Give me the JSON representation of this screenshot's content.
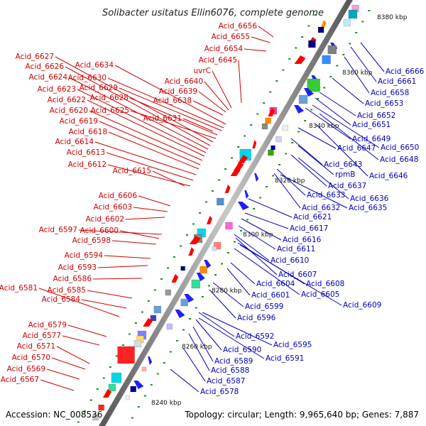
{
  "title": "Solibacter usitatus Ellin6076, complete genome",
  "footer": {
    "accession": "Accession: NC_008536",
    "summary": "Topology: circular; Length: 9,965,640 bp; Genes: 7,887"
  },
  "scale_labels": [
    "8380 kbp",
    "8360 kbp",
    "8340 kbp",
    "8320 kbp",
    "8300 kbp",
    "8280 kbp",
    "8260 kbp",
    "8240 kbp"
  ],
  "forward_genes": [
    "Acid_6656",
    "Acid_6655",
    "Acid_6654",
    "Acid_6645",
    "uvrC",
    "Acid_6640",
    "Acid_6639",
    "Acid_6638",
    "Acid_6631",
    "Acid_6634",
    "Acid_6630",
    "Acid_6629",
    "Acid_6628",
    "Acid_6625",
    "Acid_6627",
    "Acid_6626",
    "Acid_6624",
    "Acid_6623",
    "Acid_6622",
    "Acid_6620",
    "Acid_6619",
    "Acid_6618",
    "Acid_6614",
    "Acid_6613",
    "Acid_6612",
    "Acid_6615",
    "Acid_6606",
    "Acid_6603",
    "Acid_6602",
    "Acid_6597",
    "Acid_6600",
    "Acid_6598",
    "Acid_6594",
    "Acid_6593",
    "Acid_6586",
    "Acid_6581",
    "Acid_6585",
    "Acid_6584",
    "Acid_6579",
    "Acid_6577",
    "Acid_6571",
    "Acid_6570",
    "Acid_6569",
    "Acid_6567"
  ],
  "reverse_genes": [
    "Acid_6666",
    "Acid_6661",
    "Acid_6658",
    "Acid_6653",
    "Acid_6652",
    "Acid_6651",
    "Acid_6649",
    "Acid_6650",
    "Acid_6647",
    "Acid_6648",
    "Acid_6643",
    "Acid_6646",
    "rpmB",
    "Acid_6637",
    "Acid_6636",
    "Acid_6633",
    "Acid_6632",
    "Acid_6635",
    "Acid_6621",
    "Acid_6617",
    "Acid_6616",
    "Acid_6611",
    "Acid_6610",
    "Acid_6607",
    "Acid_6608",
    "Acid_6604",
    "Acid_6605",
    "Acid_6601",
    "Acid_6609",
    "Acid_6599",
    "Acid_6596",
    "Acid_6592",
    "Acid_6595",
    "Acid_6590",
    "Acid_6591",
    "Acid_6589",
    "Acid_6588",
    "Acid_6587",
    "Acid_6578"
  ],
  "colors": {
    "forward": "#d00000",
    "reverse": "#0000b8",
    "backbone": "#7a7a7a",
    "rna": "#1a8f1a"
  }
}
